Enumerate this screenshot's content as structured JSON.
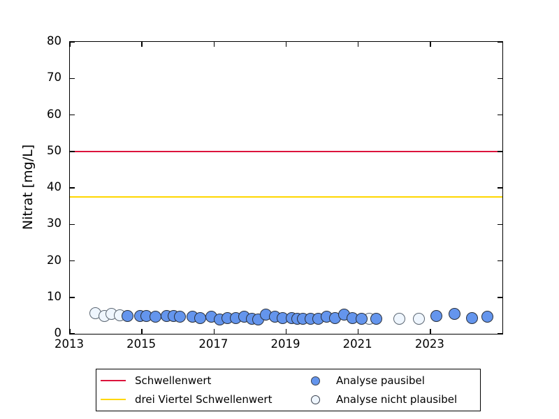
{
  "chart_data": {
    "type": "scatter",
    "title": "",
    "xlabel": "",
    "ylabel": "Nitrat [mg/L]",
    "xlim": [
      2013,
      2025
    ],
    "ylim": [
      0,
      80
    ],
    "xticks": [
      2013,
      2015,
      2017,
      2019,
      2021,
      2023
    ],
    "yticks": [
      0,
      10,
      20,
      30,
      40,
      50,
      60,
      70,
      80
    ],
    "grid": false,
    "legend_position": "below-center",
    "hlines": [
      {
        "label": "Schwellenwert",
        "value": 50,
        "color": "#dc143c"
      },
      {
        "label": "drei Viertel Schwellenwert",
        "value": 37.5,
        "color": "#ffd700"
      }
    ],
    "series": [
      {
        "name": "Analyse pausibel",
        "marker": "filled-circle",
        "color": "#6495ed",
        "edge": "#2b313b",
        "points": [
          [
            2014.59,
            4.8
          ],
          [
            2014.94,
            4.8
          ],
          [
            2015.13,
            4.8
          ],
          [
            2015.38,
            4.6
          ],
          [
            2015.69,
            4.8
          ],
          [
            2015.88,
            4.8
          ],
          [
            2016.06,
            4.6
          ],
          [
            2016.41,
            4.6
          ],
          [
            2016.62,
            4.4
          ],
          [
            2016.93,
            4.6
          ],
          [
            2017.16,
            4.0
          ],
          [
            2017.37,
            4.4
          ],
          [
            2017.61,
            4.4
          ],
          [
            2017.84,
            4.6
          ],
          [
            2018.05,
            4.2
          ],
          [
            2018.23,
            4.0
          ],
          [
            2018.44,
            5.2
          ],
          [
            2018.69,
            4.6
          ],
          [
            2018.9,
            4.4
          ],
          [
            2019.16,
            4.4
          ],
          [
            2019.31,
            4.1
          ],
          [
            2019.46,
            4.2
          ],
          [
            2019.68,
            4.2
          ],
          [
            2019.89,
            4.2
          ],
          [
            2020.12,
            4.6
          ],
          [
            2020.35,
            4.4
          ],
          [
            2020.61,
            5.2
          ],
          [
            2020.84,
            4.4
          ],
          [
            2021.09,
            4.2
          ],
          [
            2021.5,
            4.2
          ],
          [
            2023.16,
            4.8
          ],
          [
            2023.68,
            5.4
          ],
          [
            2024.15,
            4.4
          ],
          [
            2024.59,
            4.6
          ]
        ]
      },
      {
        "name": "Analyse nicht plausibel",
        "marker": "open-circle",
        "color": "#eff6fe",
        "edge": "#5b6672",
        "points": [
          [
            2013.7,
            5.6
          ],
          [
            2013.95,
            4.8
          ],
          [
            2014.16,
            5.4
          ],
          [
            2014.39,
            5.0
          ],
          [
            2021.3,
            4.1
          ],
          [
            2022.15,
            4.2
          ],
          [
            2022.68,
            4.2
          ]
        ]
      }
    ]
  }
}
